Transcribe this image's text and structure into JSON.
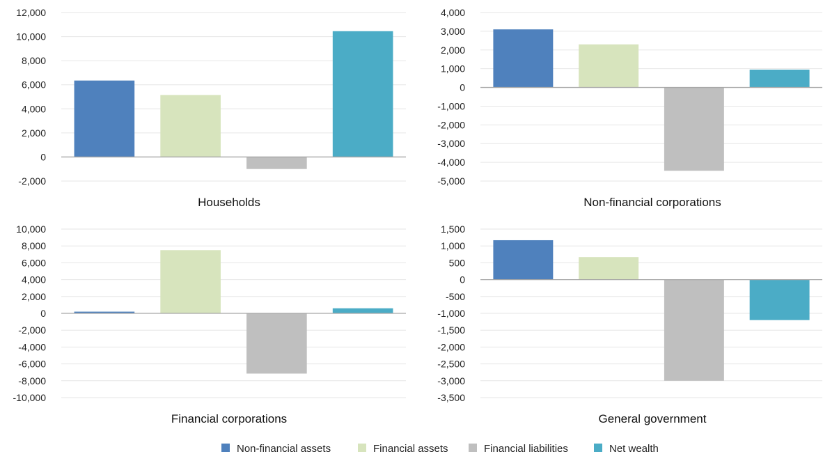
{
  "chart_data": [
    {
      "type": "bar",
      "title": "Households",
      "categories": [
        "Non-financial assets",
        "Financial assets",
        "Financial liabilities",
        "Net wealth"
      ],
      "values": [
        6350,
        5150,
        -1000,
        10450
      ],
      "ylim": [
        -2000,
        12000
      ],
      "yticks": [
        12000,
        10000,
        8000,
        6000,
        4000,
        2000,
        0,
        -2000
      ],
      "ytick_labels": [
        "12,000",
        "10,000",
        "8,000",
        "6,000",
        "4,000",
        "2,000",
        "0",
        "-2,000"
      ],
      "grid": true
    },
    {
      "type": "bar",
      "title": "Non-financial corporations",
      "categories": [
        "Non-financial assets",
        "Financial assets",
        "Financial liabilities",
        "Net wealth"
      ],
      "values": [
        3100,
        2300,
        -4450,
        950
      ],
      "ylim": [
        -5000,
        4000
      ],
      "yticks": [
        4000,
        3000,
        2000,
        1000,
        0,
        -1000,
        -2000,
        -3000,
        -4000,
        -5000
      ],
      "ytick_labels": [
        "4,000",
        "3,000",
        "2,000",
        "1,000",
        "0",
        "-1,000",
        "-2,000",
        "-3,000",
        "-4,000",
        "-5,000"
      ],
      "grid": true
    },
    {
      "type": "bar",
      "title": "Financial corporations",
      "categories": [
        "Non-financial assets",
        "Financial assets",
        "Financial liabilities",
        "Net wealth"
      ],
      "values": [
        200,
        7500,
        -7150,
        600
      ],
      "ylim": [
        -10000,
        10000
      ],
      "yticks": [
        10000,
        8000,
        6000,
        4000,
        2000,
        0,
        -2000,
        -4000,
        -6000,
        -8000,
        -10000
      ],
      "ytick_labels": [
        "10,000",
        "8,000",
        "6,000",
        "4,000",
        "2,000",
        "0",
        "-2,000",
        "-4,000",
        "-6,000",
        "-8,000",
        "-10,000"
      ],
      "grid": true
    },
    {
      "type": "bar",
      "title": "General government",
      "categories": [
        "Non-financial assets",
        "Financial assets",
        "Financial liabilities",
        "Net wealth"
      ],
      "values": [
        1170,
        670,
        -3000,
        -1200
      ],
      "ylim": [
        -3500,
        1500
      ],
      "yticks": [
        1500,
        1000,
        500,
        0,
        -500,
        -1000,
        -1500,
        -2000,
        -2500,
        -3000,
        -3500
      ],
      "ytick_labels": [
        "1,500",
        "1,000",
        "500",
        "0",
        "-500",
        "-1,000",
        "-1,500",
        "-2,000",
        "-2,500",
        "-3,000",
        "-3,500"
      ],
      "grid": true
    }
  ],
  "legend": {
    "placement": "bottom",
    "items": [
      {
        "label": "Non-financial assets",
        "color": "#4f81bd"
      },
      {
        "label": "Financial assets",
        "color": "#d7e4bd"
      },
      {
        "label": "Financial liabilities",
        "color": "#bfbfbf"
      },
      {
        "label": "Net wealth",
        "color": "#4bacc6"
      }
    ]
  }
}
